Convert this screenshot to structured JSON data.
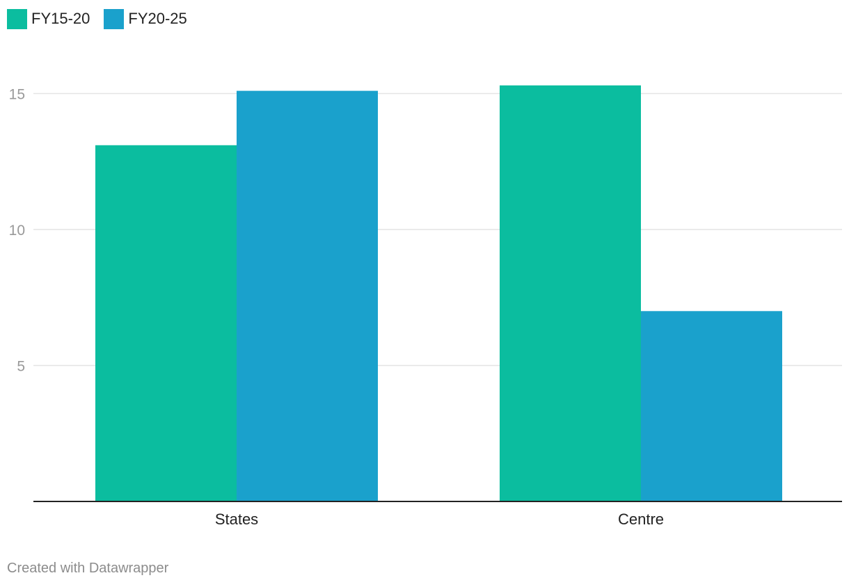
{
  "chart_data": {
    "type": "bar",
    "categories": [
      "States",
      "Centre"
    ],
    "series": [
      {
        "name": "FY15-20",
        "values": [
          13.1,
          15.3
        ],
        "color": "#0bbd9f"
      },
      {
        "name": "FY20-25",
        "values": [
          15.1,
          7.0
        ],
        "color": "#1aa1cc"
      }
    ],
    "y_ticks": [
      5,
      10,
      15
    ],
    "ylim": [
      0,
      15.5
    ],
    "grid": true,
    "legend_position": "top-left"
  },
  "footer": {
    "credit": "Created with Datawrapper"
  }
}
